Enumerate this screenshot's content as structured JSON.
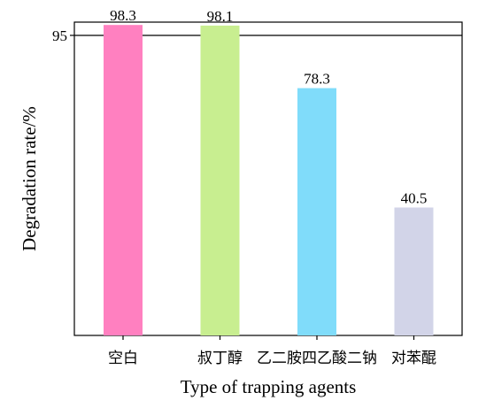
{
  "chart_data": {
    "type": "bar",
    "categories": [
      "空白",
      "叔丁醇",
      "乙二胺四乙酸二钠",
      "对苯醌"
    ],
    "values": [
      98.3,
      98.1,
      78.3,
      40.5
    ],
    "value_labels": [
      "98.3",
      "98.1",
      "78.3",
      "40.5"
    ],
    "colors": [
      "#ff80c0",
      "#c8ee90",
      "#80dcfa",
      "#d2d4e8"
    ],
    "xlabel": "Type of trapping agents",
    "ylabel": "Degradation rate/%",
    "yticks": [
      95
    ],
    "ytick_labels": [
      "95"
    ],
    "reference_line": 95,
    "ylim": [
      0,
      99.2
    ],
    "grid": false
  }
}
